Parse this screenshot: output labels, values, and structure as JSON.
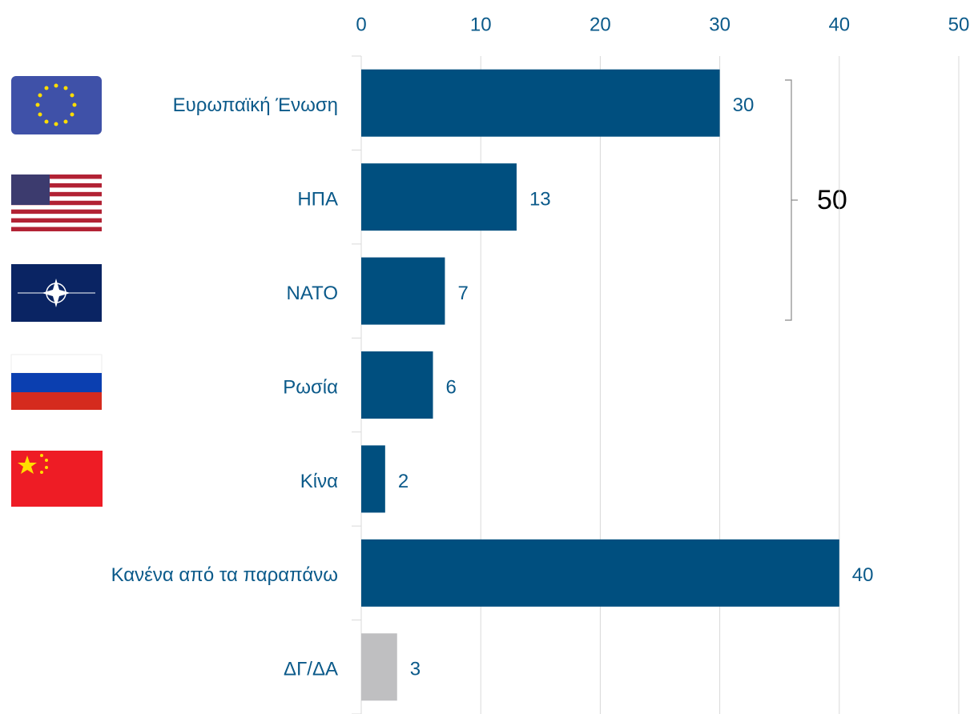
{
  "chart_data": {
    "type": "hbar",
    "categories": [
      "Ευρωπαϊκή Ένωση",
      "ΗΠΑ",
      "ΝΑΤΟ",
      "Ρωσία",
      "Κίνα",
      "Κανένα από τα παραπάνω",
      "ΔΓ/ΔΑ"
    ],
    "values": [
      30,
      13,
      7,
      6,
      2,
      40,
      3
    ],
    "colors": [
      "#004f7f",
      "#004f7f",
      "#004f7f",
      "#004f7f",
      "#004f7f",
      "#004f7f",
      "#bfbfc1"
    ],
    "xlim": [
      0,
      50
    ],
    "xticks": [
      0,
      10,
      20,
      30,
      40,
      50
    ],
    "grid": true,
    "annotation": "50"
  }
}
